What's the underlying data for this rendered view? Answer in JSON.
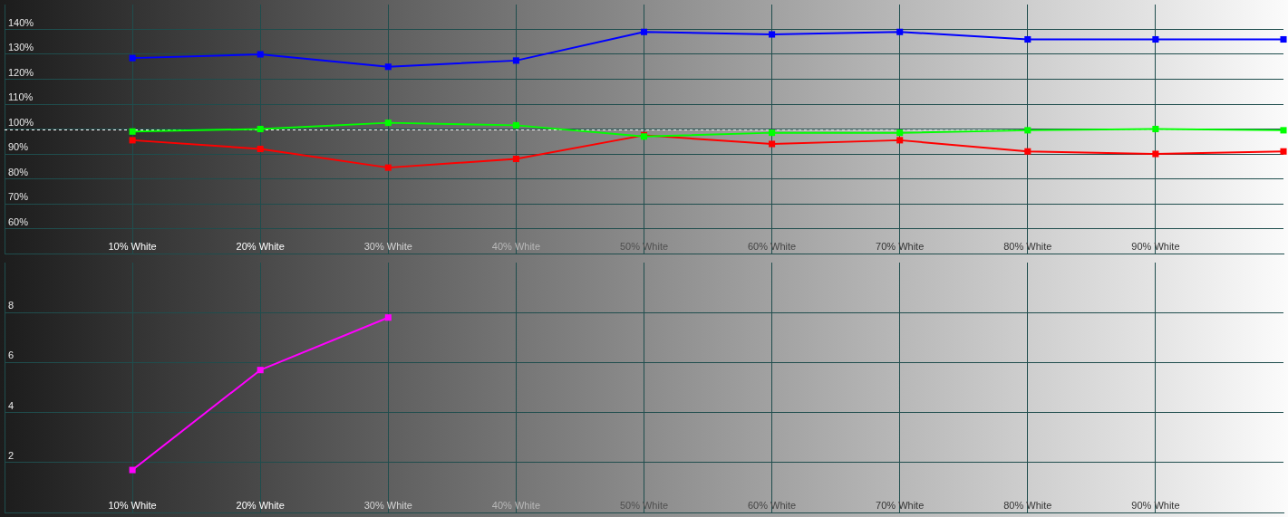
{
  "chart_data": [
    {
      "type": "line",
      "x": [
        10,
        20,
        30,
        40,
        50,
        60,
        70,
        80,
        90,
        100
      ],
      "xlim": [
        0,
        100
      ],
      "xticks": [
        {
          "value": 10,
          "label": "10% White"
        },
        {
          "value": 20,
          "label": "20% White"
        },
        {
          "value": 30,
          "label": "30% White"
        },
        {
          "value": 40,
          "label": "40% White"
        },
        {
          "value": 50,
          "label": "50% White"
        },
        {
          "value": 60,
          "label": "60% White"
        },
        {
          "value": 70,
          "label": "70% White"
        },
        {
          "value": 80,
          "label": "80% White"
        },
        {
          "value": 90,
          "label": "90% White"
        }
      ],
      "ylim": [
        50,
        150
      ],
      "yticks": [
        {
          "value": 60,
          "label": "60%"
        },
        {
          "value": 70,
          "label": "70%"
        },
        {
          "value": 80,
          "label": "80%"
        },
        {
          "value": 90,
          "label": "90%"
        },
        {
          "value": 100,
          "label": "100%"
        },
        {
          "value": 110,
          "label": "110%"
        },
        {
          "value": 120,
          "label": "120%"
        },
        {
          "value": 130,
          "label": "130%"
        },
        {
          "value": 140,
          "label": "140%"
        }
      ],
      "grid": true,
      "marker": "square",
      "series": [
        {
          "color": "#ff0000",
          "values": [
            95.5,
            92,
            84.5,
            88,
            97.5,
            94,
            95.5,
            91,
            90,
            91
          ]
        },
        {
          "color": "#00ff00",
          "values": [
            99,
            100,
            102.5,
            101.5,
            97,
            98.5,
            98.5,
            99.5,
            100,
            99.5
          ]
        },
        {
          "color": "#0000ff",
          "values": [
            128.5,
            130,
            125,
            127.5,
            139,
            138,
            139,
            136,
            136,
            136
          ]
        }
      ],
      "ref_lines": [
        {
          "axis": "y",
          "value": 100,
          "color": "#ffffff",
          "line_style": "dashed"
        }
      ]
    },
    {
      "type": "line",
      "x": [
        10,
        20,
        30
      ],
      "xlim": [
        0,
        100
      ],
      "xticks": [
        {
          "value": 10,
          "label": "10% White"
        },
        {
          "value": 20,
          "label": "20% White"
        },
        {
          "value": 30,
          "label": "30% White"
        },
        {
          "value": 40,
          "label": "40% White"
        },
        {
          "value": 50,
          "label": "50% White"
        },
        {
          "value": 60,
          "label": "60% White"
        },
        {
          "value": 70,
          "label": "70% White"
        },
        {
          "value": 80,
          "label": "80% White"
        },
        {
          "value": 90,
          "label": "90% White"
        }
      ],
      "ylim": [
        0,
        10
      ],
      "yticks": [
        2,
        4,
        6,
        8
      ],
      "grid": true,
      "marker": "square",
      "series": [
        {
          "color": "#ff00ff",
          "values": [
            1.7,
            5.7,
            7.8
          ]
        }
      ]
    }
  ]
}
